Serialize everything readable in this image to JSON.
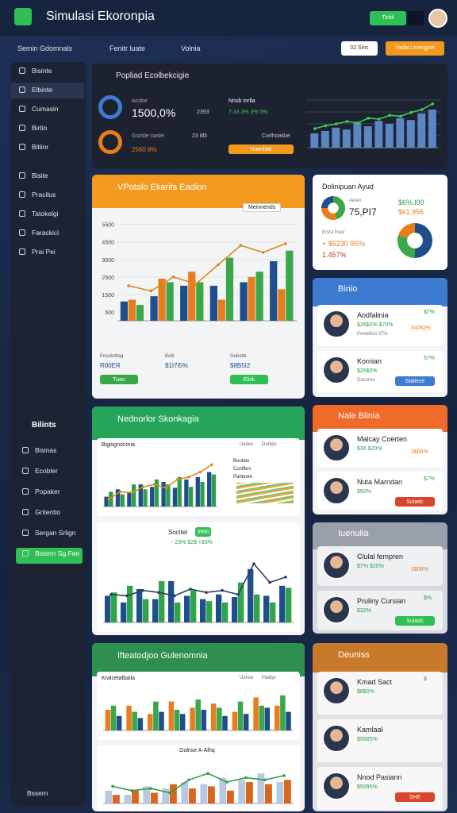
{
  "header": {
    "title": "Simulasi Ekoronpia",
    "button": "Tirbil"
  },
  "nav": {
    "items": [
      "Semin Gdomnals",
      "Fenitr luate",
      "Volnia"
    ],
    "buttons": [
      "02 Sinc",
      "Yadai Lmengoei"
    ]
  },
  "sidebar": {
    "top": [
      "Bisinte",
      "Elbinte",
      "Cumasin",
      "Birtio",
      "Bitlinr"
    ],
    "middle": [
      "Bisite",
      "Pracilus",
      "Tatokelgi",
      "Farackicl",
      "Prai Pei"
    ],
    "section": "Bilints",
    "bottom": [
      "Bisinas",
      "Ecobler",
      "Popaker",
      "Gritentio",
      "Sergan Srlign",
      "Bistern Sg Fen"
    ],
    "footer": "Bssern"
  },
  "overview": {
    "title": "Popliad Ecolbekcigie",
    "stat1_label": "Acobe",
    "stat1": "1500,0%",
    "stat1_side": "2393",
    "stat2_label": "Gsosle naste",
    "stat2": "2560 8%",
    "stat2_side": "23 8l5",
    "mid_label": "Nnsb Inrlla",
    "mid_value": "7 a3.3% 3% 5%",
    "mid_note": "Corlhoakbe",
    "button": "Nuenlaie"
  },
  "main_panel": {
    "title": "VPotalo Ekarits Eadion",
    "filter": "Meinnends",
    "stats": [
      {
        "label": "Pocelotllag",
        "value": "R00ER",
        "button": "Tuan"
      },
      {
        "label": "Bolit",
        "value": "$1I7i5%"
      },
      {
        "label": "Gebstle",
        "value": "$8B5I2",
        "button": "Elisk"
      }
    ]
  },
  "summary_card": {
    "title": "Dolinipuan Ayud",
    "label": "Aeian",
    "value": "75,PI7",
    "side1": "$6%.l00",
    "side2": "$k1.956",
    "note": "Ersta Inasl",
    "stat": "+ $6230 9S%",
    "sub": "1.457%"
  },
  "binio": {
    "title": "Binio",
    "people": [
      {
        "name": "Aodfalinia",
        "stats": "$26$0% $70%",
        "sub": "Pnotellon 37%",
        "pct": "$7%",
        "side": "340lQ%"
      },
      {
        "name": "Kornian",
        "stats": "$26$0%",
        "sub": "Dusnrne",
        "pct": "57%",
        "button": "Stalieze"
      }
    ]
  },
  "green_panel": {
    "title": "Nednorlor Skonkagia",
    "sub1": "Bigisgnocona",
    "sub1_filters": [
      "Uedes",
      "Dorlips"
    ],
    "sub2_title": "Socitel",
    "sub2_badge": "3990",
    "sub2_stats": "- 23%   $2$   +$3%",
    "legend": [
      "Buntian",
      "Cunfibrs",
      "Parlenen"
    ]
  },
  "orange_card": {
    "title": "Nale Blinia",
    "people": [
      {
        "name": "Malcay Coerten",
        "stats": "$36   $20%",
        "side": "3$06%"
      },
      {
        "name": "Nuta Marndan",
        "stats": "$50%",
        "pct": "$7%",
        "button": "Sutadc"
      }
    ]
  },
  "gray_card": {
    "title": "Iuenulia",
    "people": [
      {
        "name": "Clulal fempren",
        "stats": "$7%   $20%",
        "side": "3$08%"
      },
      {
        "name": "Pruliny Cursian",
        "stats": "$32%",
        "pct": "$%",
        "button": "Suladc"
      }
    ]
  },
  "bottom_panel": {
    "title": "Ifteatodjoo Gulenomnia",
    "sub1": "Kralcetalbaila",
    "sub1_filters": [
      "Unnse",
      "Pailigs"
    ],
    "sub2_title": "Gulnse A-Alhq"
  },
  "deuniss": {
    "title": "Deuniss",
    "people": [
      {
        "name": "Kmad Sact",
        "stats": "$8$0%",
        "pct": "$"
      },
      {
        "name": "Kamlaal",
        "stats": "$5685%"
      },
      {
        "name": "Nnod Pasiann",
        "stats": "$5095%",
        "button": "SHE"
      }
    ]
  },
  "chart_data": [
    {
      "type": "combo",
      "ylim": [
        0,
        100
      ],
      "series": [
        {
          "type": "bar",
          "color": "#5b86c4",
          "values": [
            30,
            35,
            42,
            38,
            52,
            45,
            56,
            50,
            62,
            58,
            72,
            80
          ]
        },
        {
          "type": "line",
          "color": "#3fd04f",
          "values": [
            40,
            46,
            50,
            55,
            52,
            62,
            60,
            68,
            66,
            74,
            80,
            92
          ]
        }
      ]
    },
    {
      "type": "combo",
      "ylim": [
        0,
        5800
      ],
      "yticks": [
        500,
        1500,
        2500,
        3500,
        4500,
        5500
      ],
      "series": [
        {
          "type": "bar",
          "color": "#1f4e8c",
          "values": [
            1100,
            1400,
            2000,
            2000,
            2200,
            3400
          ]
        },
        {
          "type": "bar",
          "color": "#e87d1e",
          "values": [
            1200,
            2400,
            2800,
            1200,
            2500,
            1800
          ]
        },
        {
          "type": "bar",
          "color": "#3aa84a",
          "values": [
            900,
            2200,
            2200,
            3600,
            2800,
            4000
          ]
        },
        {
          "type": "line",
          "color": "#d98a1a",
          "values": [
            2000,
            1700,
            2500,
            2100,
            3200,
            4300,
            3900,
            4400
          ]
        }
      ]
    },
    {
      "type": "combo",
      "ylim": [
        0,
        100
      ],
      "series": [
        {
          "type": "bar",
          "color": "#1f4e8c",
          "values": [
            20,
            35,
            30,
            45,
            40,
            50,
            38,
            55,
            60,
            70
          ]
        },
        {
          "type": "bar",
          "color": "#2f9e4a",
          "values": [
            30,
            25,
            45,
            35,
            55,
            45,
            60,
            40,
            50,
            65
          ]
        },
        {
          "type": "line",
          "color": "#e08a1e",
          "values": [
            15,
            30,
            28,
            40,
            45,
            38,
            55,
            60,
            70,
            85
          ]
        }
      ]
    },
    {
      "type": "combo",
      "ylim": [
        0,
        100
      ],
      "series": [
        {
          "type": "bar",
          "color": "#1f4e8c",
          "values": [
            40,
            30,
            50,
            35,
            62,
            40,
            35,
            42,
            38,
            80,
            40,
            55
          ]
        },
        {
          "type": "bar",
          "color": "#2fa54a",
          "values": [
            45,
            55,
            35,
            62,
            30,
            48,
            32,
            30,
            60,
            42,
            30,
            52
          ]
        },
        {
          "type": "line",
          "color": "#2a3f66",
          "values": [
            42,
            40,
            48,
            45,
            40,
            50,
            45,
            48,
            42,
            88,
            60,
            68
          ]
        }
      ]
    },
    {
      "type": "combo",
      "ylim": [
        0,
        100
      ],
      "series": [
        {
          "type": "bar",
          "color": "#e87d1e",
          "values": [
            50,
            60,
            40,
            70,
            55,
            65,
            45,
            80,
            60
          ]
        },
        {
          "type": "bar",
          "color": "#3aa84a",
          "values": [
            60,
            45,
            70,
            50,
            75,
            55,
            70,
            60,
            85
          ]
        },
        {
          "type": "bar",
          "color": "#1f4e8c",
          "values": [
            35,
            30,
            45,
            40,
            50,
            35,
            40,
            55,
            45
          ]
        }
      ]
    },
    {
      "type": "combo",
      "ylim": [
        0,
        100
      ],
      "series": [
        {
          "type": "bar",
          "color": "#b7c9e0",
          "values": [
            30,
            20,
            40,
            35,
            50,
            45,
            60,
            55,
            70,
            50
          ]
        },
        {
          "type": "bar",
          "color": "#d9661f",
          "values": [
            20,
            30,
            25,
            45,
            35,
            40,
            30,
            50,
            45,
            55
          ]
        },
        {
          "type": "line",
          "color": "#2f9e4a",
          "values": [
            40,
            30,
            35,
            25,
            55,
            70,
            50,
            60,
            55,
            65
          ]
        }
      ]
    },
    {
      "type": "pie",
      "colors": [
        "#3aa84a",
        "#e87d1e",
        "#1f4e8c"
      ],
      "values": [
        45,
        30,
        25
      ]
    },
    {
      "type": "pie",
      "colors": [
        "#1f4e8c",
        "#3aa84a",
        "#e87d1e"
      ],
      "values": [
        50,
        30,
        20
      ]
    }
  ]
}
